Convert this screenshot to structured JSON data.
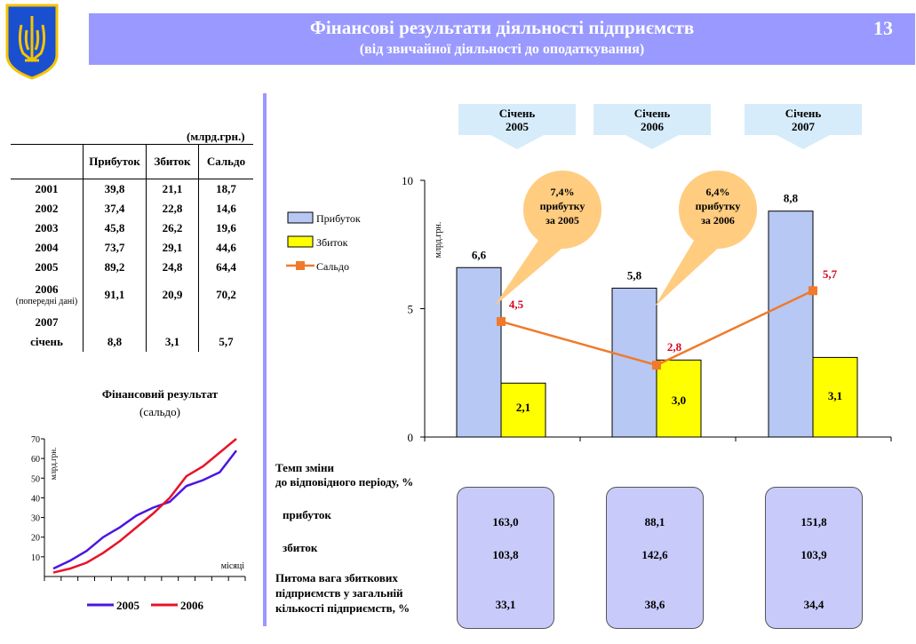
{
  "header": {
    "title": "Фінансові результати діяльності підприємств",
    "subtitle": "(від звичайної діяльності до оподаткування)",
    "slide_number": "13"
  },
  "table": {
    "unit": "(млрд.грн.)",
    "columns": [
      "Прибуток",
      "Збиток",
      "Сальдо"
    ],
    "rows": [
      {
        "year": "2001",
        "note": "",
        "profit": "39,8",
        "loss": "21,1",
        "balance": "18,7"
      },
      {
        "year": "2002",
        "note": "",
        "profit": "37,4",
        "loss": "22,8",
        "balance": "14,6"
      },
      {
        "year": "2003",
        "note": "",
        "profit": "45,8",
        "loss": "26,2",
        "balance": "19,6"
      },
      {
        "year": "2004",
        "note": "",
        "profit": "73,7",
        "loss": "29,1",
        "balance": "44,6"
      },
      {
        "year": "2005",
        "note": "",
        "profit": "89,2",
        "loss": "24,8",
        "balance": "64,4"
      },
      {
        "year": "2006",
        "note": "(попередні дані)",
        "profit": "91,1",
        "loss": "20,9",
        "balance": "70,2"
      }
    ],
    "row2007": {
      "year": "2007",
      "month": "січень",
      "profit": "8,8",
      "loss": "3,1",
      "balance": "5,7"
    }
  },
  "mini_chart_title": "Фінансовий  результат",
  "mini_chart_subtitle": "(сальдо)",
  "main_periods": [
    {
      "line1": "Січень",
      "line2": "2005"
    },
    {
      "line1": "Січень",
      "line2": "2006"
    },
    {
      "line1": "Січень",
      "line2": "2007"
    }
  ],
  "callouts": [
    {
      "l1": "7,4%",
      "l2": "прибутку",
      "l3": "за  2005"
    },
    {
      "l1": "6,4%",
      "l2": "прибутку",
      "l3": "за  2006"
    }
  ],
  "rates": {
    "header_line1": "Темп зміни",
    "header_line2": "до відповідного періоду, %",
    "profit_label": "прибуток",
    "loss_label": "збиток",
    "share_line1": "Питома вага збиткових",
    "share_line2": "підприємств у загальній",
    "share_line3": "кількості підприємств, %",
    "profit": [
      "163,0",
      "88,1",
      "151,8"
    ],
    "loss": [
      "103,8",
      "142,6",
      "103,9"
    ],
    "share": [
      "33,1",
      "38,6",
      "34,4"
    ]
  },
  "colors": {
    "header_bg": "#9999ff",
    "profit": "#b7c8f5",
    "loss": "#ffff00",
    "balance": "#f07a2a",
    "bubble": "#ffcc80",
    "box": "#c8cbfa",
    "line2005": "#4b16e0",
    "line2006": "#e8132a"
  },
  "chart_data": [
    {
      "type": "bar",
      "title": "",
      "categories": [
        "Січень 2005",
        "Січень 2006",
        "Січень 2007"
      ],
      "series": [
        {
          "name": "Прибуток",
          "values": [
            6.6,
            5.8,
            8.8
          ],
          "labels": [
            "6,6",
            "5,8",
            "8,8"
          ]
        },
        {
          "name": "Збиток",
          "values": [
            2.1,
            3.0,
            3.1
          ],
          "labels": [
            "2,1",
            "3,0",
            "3,1"
          ]
        },
        {
          "name": "Сальдо",
          "type": "line",
          "values": [
            4.5,
            2.8,
            5.7
          ],
          "labels": [
            "4,5",
            "2,8",
            "5,7"
          ]
        }
      ],
      "ylabel": "млрд.грн.",
      "ylim": [
        0,
        10
      ],
      "yticks": [
        "0",
        "5",
        "10"
      ],
      "legend": "left"
    },
    {
      "type": "line",
      "title": "Фінансовий  результат (сальдо)",
      "xlabel": "місяці",
      "ylabel": "млрд.грн.",
      "x": [
        1,
        2,
        3,
        4,
        5,
        6,
        7,
        8,
        9,
        10,
        11,
        12
      ],
      "ylim": [
        0,
        70
      ],
      "yticks": [
        "10",
        "20",
        "30",
        "40",
        "50",
        "60",
        "70"
      ],
      "series": [
        {
          "name": "2005",
          "values": [
            4,
            8,
            13,
            20,
            25,
            31,
            35,
            38,
            46,
            49,
            53,
            64
          ]
        },
        {
          "name": "2006",
          "values": [
            2,
            4,
            7,
            12,
            18,
            25,
            32,
            40,
            51,
            56,
            63,
            70
          ]
        }
      ],
      "legend": "bottom"
    }
  ]
}
